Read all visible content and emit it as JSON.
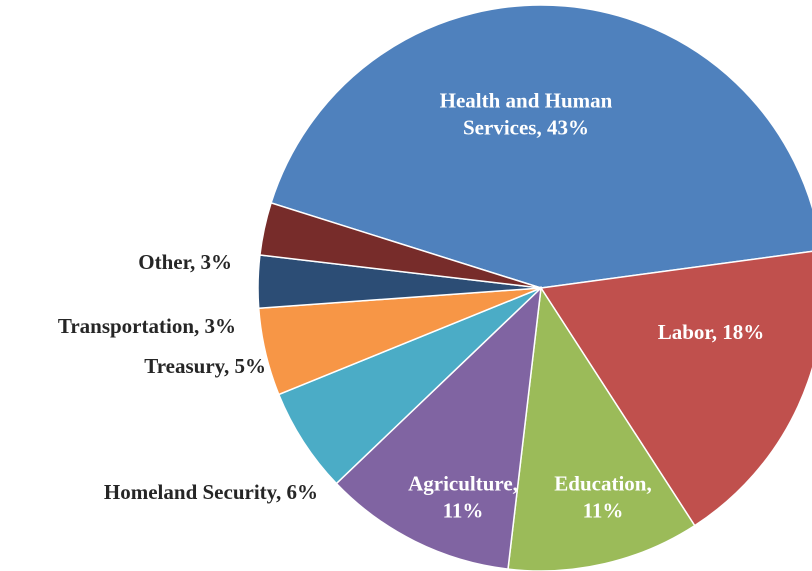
{
  "chart_data": {
    "type": "pie",
    "slices": [
      {
        "category": "Health and Human Services",
        "value": 43,
        "label_lines": [
          "Health and Human",
          "Services, 43%"
        ],
        "color": "#4f81bd"
      },
      {
        "category": "Labor",
        "value": 18,
        "label_lines": [
          "Labor, 18%"
        ],
        "color": "#c0504d"
      },
      {
        "category": "Education",
        "value": 11,
        "label_lines": [
          "Education,",
          "11%"
        ],
        "color": "#9bbb59"
      },
      {
        "category": "Agriculture",
        "value": 11,
        "label_lines": [
          "Agriculture,",
          "11%"
        ],
        "color": "#8064a2"
      },
      {
        "category": "Homeland Security",
        "value": 6,
        "label_lines": [
          "Homeland Security, 6%"
        ],
        "color": "#4bacc6"
      },
      {
        "category": "Treasury",
        "value": 5,
        "label_lines": [
          "Treasury, 5%"
        ],
        "color": "#f79646"
      },
      {
        "category": "Transportation",
        "value": 3,
        "label_lines": [
          "Transportation, 3%"
        ],
        "color": "#2c4d75"
      },
      {
        "category": "Other",
        "value": 3,
        "label_lines": [
          "Other, 3%"
        ],
        "color": "#772c2a"
      }
    ],
    "legend": "none",
    "labels": "category and percent"
  }
}
